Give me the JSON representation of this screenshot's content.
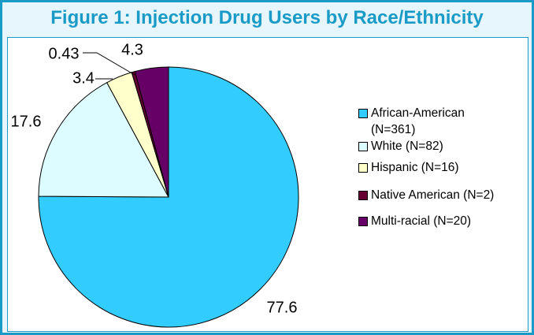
{
  "chart_data": {
    "type": "pie",
    "title": "Figure 1: Injection Drug Users by Race/Ethnicity",
    "categories": [
      "African-American (N=361)",
      "White (N=82)",
      "Hispanic (N=16)",
      "Native American (N=2)",
      "Multi-racial (N=20)"
    ],
    "values": [
      77.6,
      17.6,
      3.4,
      0.43,
      4.3
    ],
    "colors": [
      "#33ccff",
      "#ddfcff",
      "#ffffcc",
      "#660033",
      "#660066"
    ],
    "legend": "right"
  }
}
